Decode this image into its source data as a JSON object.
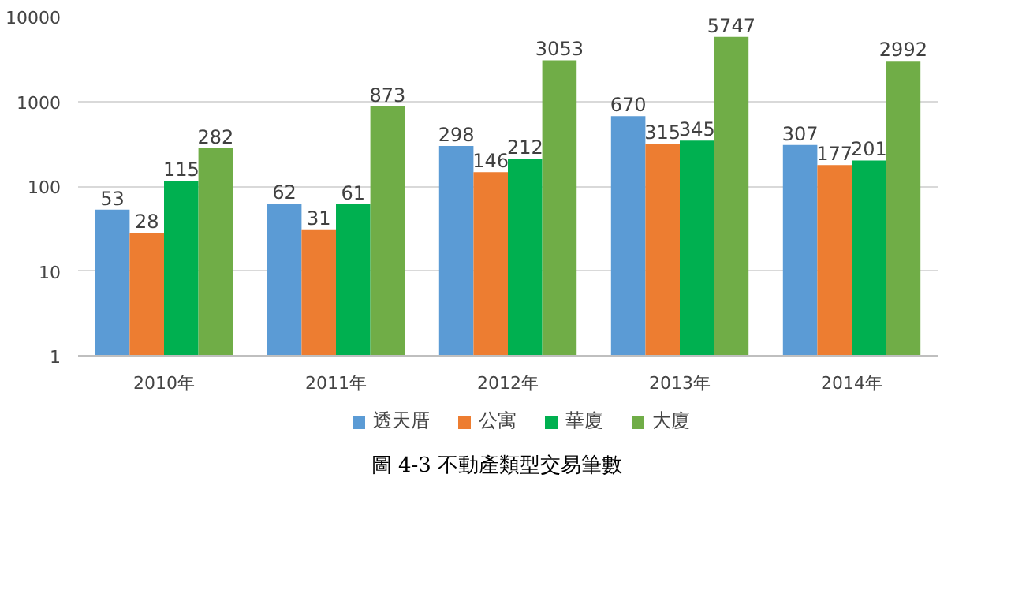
{
  "chart_data": {
    "type": "bar",
    "categories": [
      "2010年",
      "2011年",
      "2012年",
      "2013年",
      "2014年"
    ],
    "series": [
      {
        "name": "透天厝",
        "color": "#5b9bd5",
        "values": [
          53,
          62,
          298,
          670,
          307
        ]
      },
      {
        "name": "公寓",
        "color": "#ed7d31",
        "values": [
          28,
          31,
          146,
          315,
          177
        ]
      },
      {
        "name": "華廈",
        "color": "#00b050",
        "values": [
          115,
          61,
          212,
          345,
          201
        ]
      },
      {
        "name": "大廈",
        "color": "#70ad47",
        "values": [
          282,
          873,
          3053,
          5747,
          2992
        ]
      }
    ],
    "log": true,
    "ylim": [
      1,
      10000
    ],
    "yticks": [
      1,
      10,
      100,
      1000,
      10000
    ],
    "grid": "y",
    "legend": "bottom",
    "data_labels": true,
    "annotations": [
      "圖 4-3 不動產類型交易筆數"
    ]
  }
}
